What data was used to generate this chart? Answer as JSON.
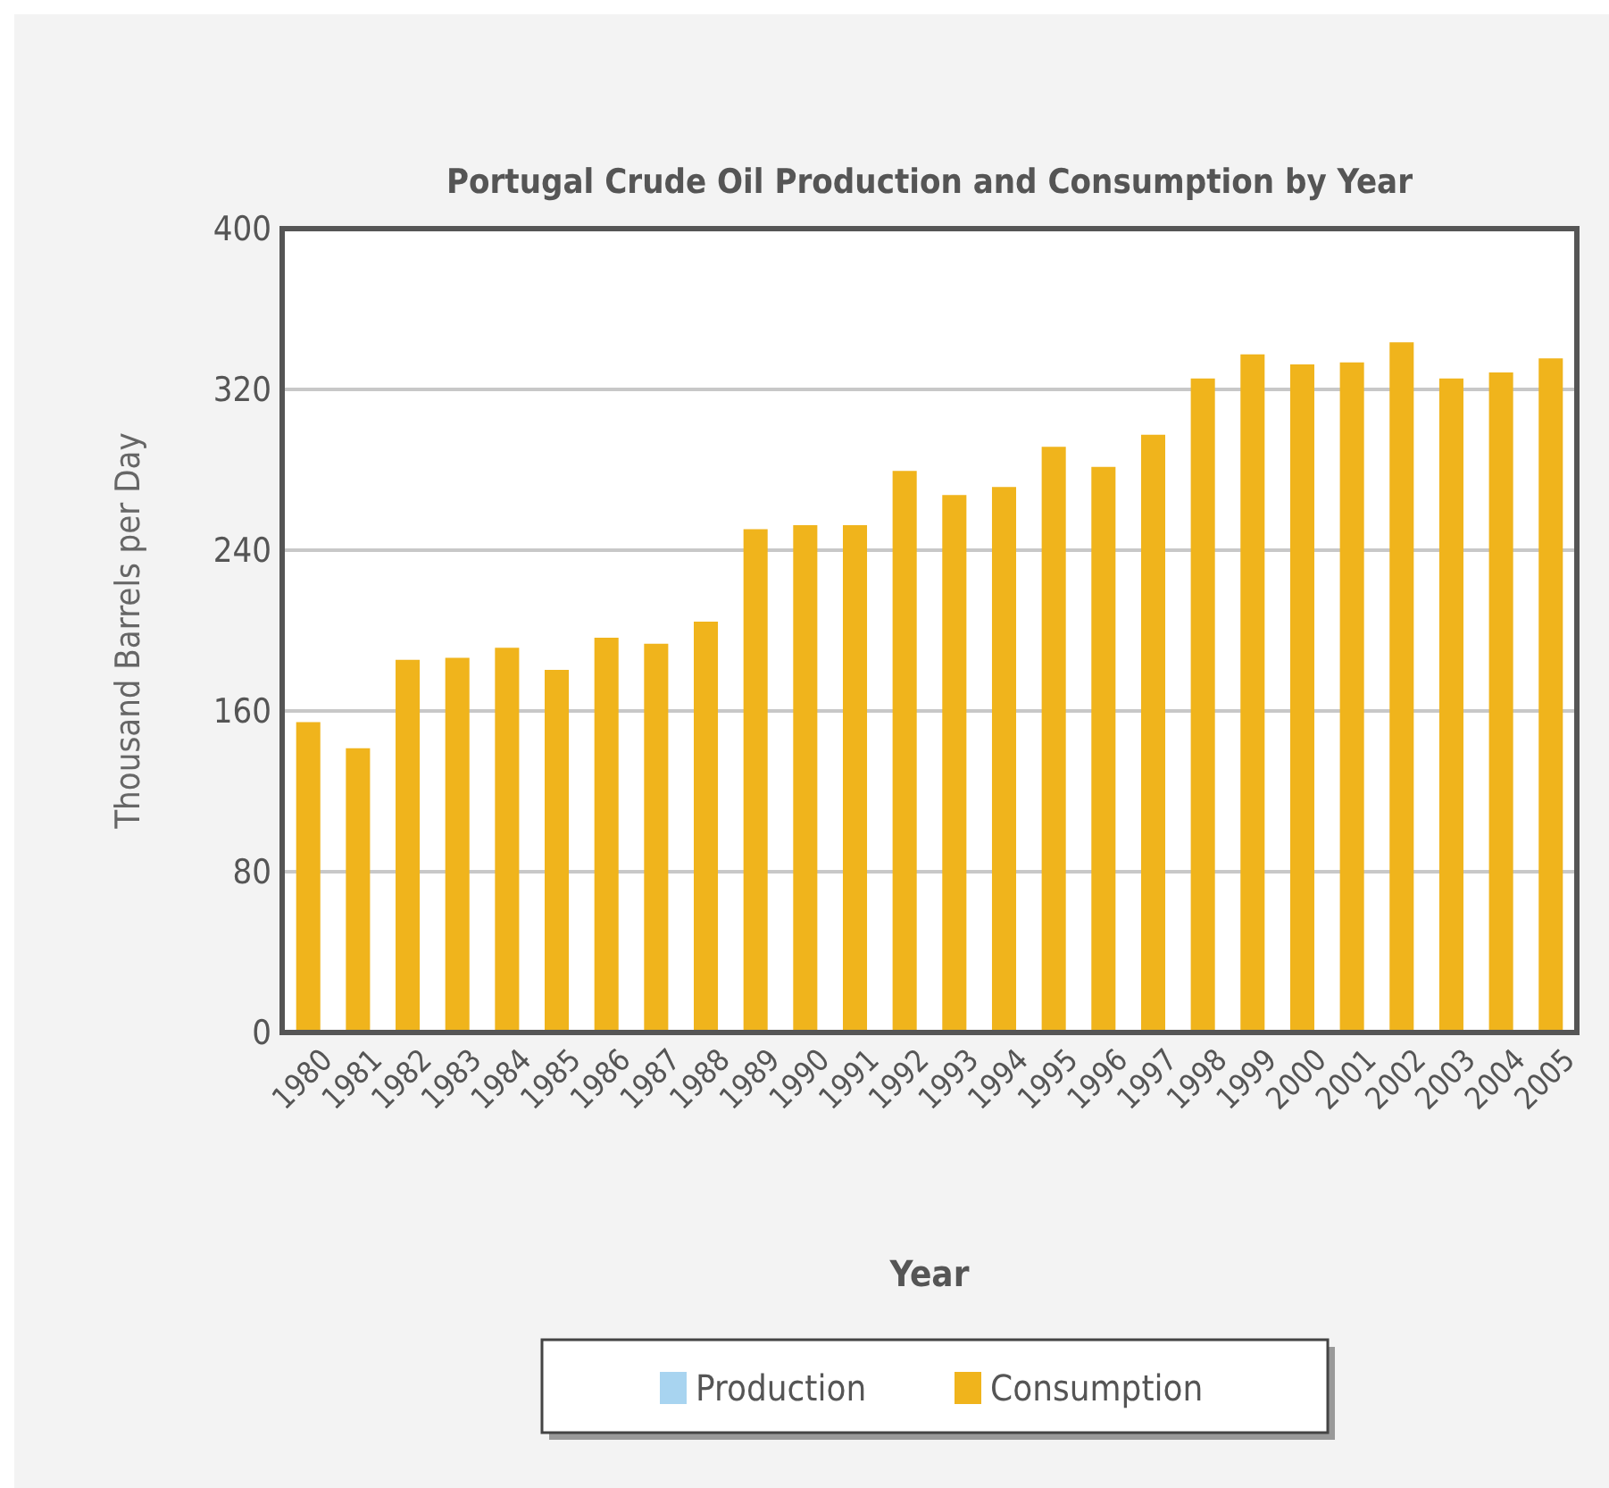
{
  "chart_data": {
    "type": "bar",
    "title": "Portugal Crude Oil Production and Consumption by Year",
    "xlabel": "Year",
    "ylabel": "Thousand Barrels per Day",
    "categories": [
      "1980",
      "1981",
      "1982",
      "1983",
      "1984",
      "1985",
      "1986",
      "1987",
      "1988",
      "1989",
      "1990",
      "1991",
      "1992",
      "1993",
      "1994",
      "1995",
      "1996",
      "1997",
      "1998",
      "1999",
      "2000",
      "2001",
      "2002",
      "2003",
      "2004",
      "2005"
    ],
    "series": [
      {
        "name": "Production",
        "color": "#a8d4f0",
        "values": [
          0,
          0,
          0,
          0,
          0,
          0,
          0,
          0,
          0,
          0,
          0,
          0,
          0,
          0,
          0,
          0,
          0,
          0,
          0,
          0,
          0,
          0,
          0,
          0,
          0,
          0
        ]
      },
      {
        "name": "Consumption",
        "color": "#f0b41c",
        "values": [
          154,
          141,
          185,
          186,
          191,
          180,
          196,
          193,
          204,
          250,
          252,
          252,
          279,
          267,
          271,
          291,
          281,
          297,
          325,
          337,
          332,
          333,
          343,
          325,
          328,
          335
        ]
      }
    ],
    "ylim": [
      0,
      400
    ],
    "yticks": [
      0,
      80,
      160,
      240,
      320,
      400
    ],
    "grid": "y",
    "legend": "bottom"
  }
}
